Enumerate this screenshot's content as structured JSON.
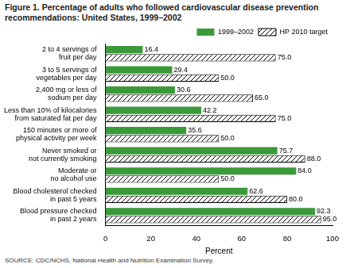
{
  "chart_data": {
    "type": "bar",
    "orientation": "horizontal",
    "title": "Figure 1. Percentage of adults who followed cardiovascular disease prevention recommendations: United States, 1999–2002",
    "source": "SOURCE: CDC/NCHS, National Health and Nutrition Examination Survey.",
    "xlabel": "Percent",
    "categories": [
      "2 to 4 servings of\nfruit per day",
      "3 to 5 servings of\nvegetables per day",
      "2,400 mg or less of\nsodium per day",
      "Less than 10% of kilocalories\nfrom saturated fat per day",
      "150 minutes or more of\nphysical activity per week",
      "Never smoked or\nnot currently smoking",
      "Moderate or\nno alcohol use",
      "Blood cholesterol checked\nin past 5 years",
      "Blood pressure checked\nin past 2 years"
    ],
    "series": [
      {
        "name": "1999–2002",
        "color": "#3a9a3a",
        "line_style": "solid",
        "values": [
          16.4,
          29.4,
          30.6,
          42.2,
          35.6,
          75.7,
          84.0,
          62.6,
          92.3
        ],
        "value_labels": [
          "16.4",
          "29.4",
          "30.6",
          "42.2",
          "35.6",
          "75.7",
          "84.0",
          "62.6",
          "92.3"
        ]
      },
      {
        "name": "HP 2010 target",
        "color": "#000000",
        "line_style": "hatched",
        "values": [
          75.0,
          50.0,
          65.0,
          75.0,
          50.0,
          88.0,
          50.0,
          80.0,
          95.0
        ],
        "value_labels": [
          "75.0",
          "50.0",
          "65.0",
          "75.0",
          "50.0",
          "88.0",
          "50.0",
          "80.0",
          "95.0"
        ]
      }
    ],
    "xlim": [
      0,
      100
    ],
    "xticks": [
      0,
      20,
      40,
      60,
      80,
      100
    ],
    "grid": false,
    "legend": "top",
    "data_labels": true
  }
}
